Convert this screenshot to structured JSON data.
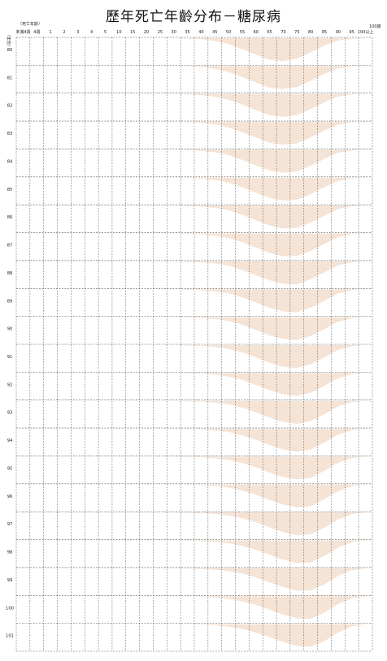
{
  "chart_data": {
    "type": "area",
    "title": "歷年死亡年齡分布－糖尿病",
    "xlabel": "（死亡年齡）",
    "ylabel": "（年份）",
    "x_unit_last": "100歲",
    "x_categories": [
      "未滿4週",
      "4週",
      "1",
      "2",
      "3",
      "4",
      "5",
      "10",
      "15",
      "20",
      "25",
      "30",
      "35",
      "40",
      "45",
      "50",
      "55",
      "60",
      "65",
      "70",
      "75",
      "80",
      "85",
      "90",
      "95",
      "100以上"
    ],
    "years": [
      "80",
      "81",
      "82",
      "83",
      "84",
      "85",
      "86",
      "87",
      "88",
      "89",
      "90",
      "91",
      "92",
      "93",
      "94",
      "95",
      "96",
      "97",
      "98",
      "99",
      "100",
      "101"
    ],
    "series": [
      {
        "year": "80",
        "values": [
          0,
          0,
          0,
          0,
          0,
          0,
          0,
          0,
          0,
          0,
          0,
          0,
          0.02,
          0.05,
          0.12,
          0.26,
          0.48,
          0.72,
          0.95,
          1.0,
          0.9,
          0.62,
          0.32,
          0.1,
          0.02,
          0
        ]
      },
      {
        "year": "81",
        "values": [
          0,
          0,
          0,
          0,
          0,
          0,
          0,
          0,
          0,
          0,
          0,
          0,
          0.02,
          0.05,
          0.12,
          0.26,
          0.48,
          0.72,
          0.95,
          1.0,
          0.92,
          0.64,
          0.34,
          0.1,
          0.02,
          0
        ]
      },
      {
        "year": "82",
        "values": [
          0,
          0,
          0,
          0,
          0,
          0,
          0,
          0,
          0,
          0,
          0,
          0,
          0.02,
          0.05,
          0.12,
          0.25,
          0.46,
          0.7,
          0.93,
          1.0,
          0.93,
          0.66,
          0.36,
          0.11,
          0.02,
          0
        ]
      },
      {
        "year": "83",
        "values": [
          0,
          0,
          0,
          0,
          0,
          0,
          0,
          0,
          0,
          0,
          0,
          0,
          0.02,
          0.05,
          0.11,
          0.24,
          0.45,
          0.69,
          0.92,
          1.0,
          0.94,
          0.68,
          0.38,
          0.12,
          0.02,
          0
        ]
      },
      {
        "year": "84",
        "values": [
          0,
          0,
          0,
          0,
          0,
          0,
          0,
          0,
          0,
          0,
          0,
          0,
          0.02,
          0.05,
          0.11,
          0.23,
          0.44,
          0.68,
          0.9,
          1.0,
          0.95,
          0.7,
          0.4,
          0.13,
          0.03,
          0
        ]
      },
      {
        "year": "85",
        "values": [
          0,
          0,
          0,
          0,
          0,
          0,
          0,
          0,
          0,
          0,
          0,
          0,
          0.02,
          0.04,
          0.1,
          0.22,
          0.42,
          0.66,
          0.89,
          1.0,
          0.96,
          0.72,
          0.42,
          0.14,
          0.03,
          0
        ]
      },
      {
        "year": "86",
        "values": [
          0,
          0,
          0,
          0,
          0,
          0,
          0,
          0,
          0,
          0,
          0,
          0,
          0.02,
          0.04,
          0.1,
          0.21,
          0.4,
          0.64,
          0.87,
          1.0,
          0.97,
          0.74,
          0.44,
          0.15,
          0.03,
          0
        ]
      },
      {
        "year": "87",
        "values": [
          0,
          0,
          0,
          0,
          0,
          0,
          0,
          0,
          0,
          0,
          0,
          0,
          0.02,
          0.04,
          0.1,
          0.2,
          0.38,
          0.62,
          0.85,
          0.99,
          0.98,
          0.76,
          0.46,
          0.16,
          0.03,
          0
        ]
      },
      {
        "year": "88",
        "values": [
          0,
          0,
          0,
          0,
          0,
          0,
          0,
          0,
          0,
          0,
          0,
          0,
          0.02,
          0.04,
          0.09,
          0.19,
          0.37,
          0.6,
          0.83,
          0.98,
          1.0,
          0.78,
          0.48,
          0.17,
          0.04,
          0
        ]
      },
      {
        "year": "89",
        "values": [
          0,
          0,
          0,
          0,
          0,
          0,
          0,
          0,
          0,
          0,
          0,
          0,
          0.02,
          0.04,
          0.09,
          0.18,
          0.35,
          0.58,
          0.81,
          0.97,
          1.0,
          0.8,
          0.5,
          0.18,
          0.04,
          0
        ]
      },
      {
        "year": "90",
        "values": [
          0,
          0,
          0,
          0,
          0,
          0,
          0,
          0,
          0,
          0,
          0,
          0,
          0.02,
          0.04,
          0.08,
          0.17,
          0.33,
          0.56,
          0.79,
          0.96,
          1.0,
          0.82,
          0.52,
          0.2,
          0.04,
          0
        ]
      },
      {
        "year": "91",
        "values": [
          0,
          0,
          0,
          0,
          0,
          0,
          0,
          0,
          0,
          0,
          0,
          0,
          0.02,
          0.03,
          0.08,
          0.16,
          0.32,
          0.54,
          0.77,
          0.95,
          1.0,
          0.84,
          0.54,
          0.21,
          0.05,
          0
        ]
      },
      {
        "year": "92",
        "values": [
          0,
          0,
          0,
          0,
          0,
          0,
          0,
          0,
          0,
          0,
          0,
          0,
          0.02,
          0.03,
          0.08,
          0.16,
          0.3,
          0.52,
          0.75,
          0.93,
          1.0,
          0.86,
          0.56,
          0.22,
          0.05,
          0
        ]
      },
      {
        "year": "93",
        "values": [
          0,
          0,
          0,
          0,
          0,
          0,
          0,
          0,
          0,
          0,
          0,
          0,
          0.02,
          0.03,
          0.07,
          0.15,
          0.29,
          0.5,
          0.73,
          0.92,
          1.0,
          0.88,
          0.58,
          0.24,
          0.05,
          0
        ]
      },
      {
        "year": "94",
        "values": [
          0,
          0,
          0,
          0,
          0,
          0,
          0,
          0,
          0,
          0,
          0,
          0,
          0.02,
          0.03,
          0.07,
          0.14,
          0.28,
          0.48,
          0.71,
          0.9,
          1.0,
          0.9,
          0.6,
          0.25,
          0.06,
          0
        ]
      },
      {
        "year": "95",
        "values": [
          0,
          0,
          0,
          0,
          0,
          0,
          0,
          0,
          0,
          0,
          0,
          0,
          0.02,
          0.03,
          0.07,
          0.14,
          0.27,
          0.46,
          0.69,
          0.89,
          1.0,
          0.92,
          0.62,
          0.27,
          0.06,
          0
        ]
      },
      {
        "year": "96",
        "values": [
          0,
          0,
          0,
          0,
          0,
          0,
          0,
          0,
          0,
          0,
          0,
          0,
          0.01,
          0.03,
          0.06,
          0.13,
          0.26,
          0.44,
          0.67,
          0.87,
          1.0,
          0.94,
          0.64,
          0.28,
          0.07,
          0
        ]
      },
      {
        "year": "97",
        "values": [
          0,
          0,
          0,
          0,
          0,
          0,
          0,
          0,
          0,
          0,
          0,
          0,
          0.01,
          0.03,
          0.06,
          0.13,
          0.25,
          0.42,
          0.65,
          0.86,
          1.0,
          0.95,
          0.66,
          0.3,
          0.07,
          0
        ]
      },
      {
        "year": "98",
        "values": [
          0,
          0,
          0,
          0,
          0,
          0,
          0,
          0,
          0,
          0,
          0,
          0,
          0.01,
          0.03,
          0.06,
          0.12,
          0.24,
          0.41,
          0.63,
          0.84,
          0.99,
          0.96,
          0.68,
          0.31,
          0.08,
          0
        ]
      },
      {
        "year": "99",
        "values": [
          0,
          0,
          0,
          0,
          0,
          0,
          0,
          0,
          0,
          0,
          0,
          0,
          0.01,
          0.03,
          0.06,
          0.12,
          0.23,
          0.4,
          0.61,
          0.82,
          0.98,
          0.97,
          0.7,
          0.33,
          0.08,
          0
        ]
      },
      {
        "year": "100",
        "values": [
          0,
          0,
          0,
          0,
          0,
          0,
          0,
          0,
          0,
          0,
          0,
          0,
          0.01,
          0.02,
          0.05,
          0.11,
          0.22,
          0.38,
          0.59,
          0.8,
          0.97,
          0.98,
          0.72,
          0.34,
          0.09,
          0
        ]
      },
      {
        "year": "101",
        "values": [
          0,
          0,
          0,
          0,
          0,
          0,
          0,
          0,
          0,
          0,
          0,
          0,
          0.01,
          0.02,
          0.05,
          0.11,
          0.21,
          0.37,
          0.57,
          0.78,
          0.96,
          0.99,
          0.74,
          0.36,
          0.1,
          0
        ]
      }
    ],
    "fill_color": "#f5e4d6",
    "grid_color": "#555555",
    "grid": true
  }
}
